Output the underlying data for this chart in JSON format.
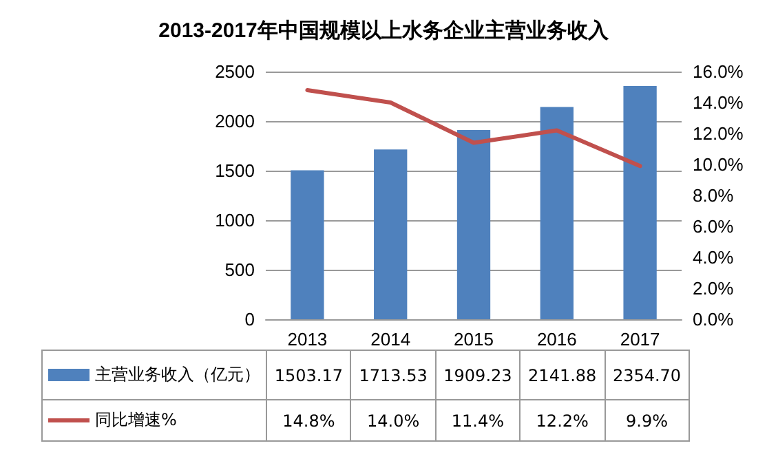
{
  "chart_data": {
    "type": "bar",
    "title": "2013-2017年中国规模以上水务企业主营业务收入",
    "categories": [
      "2013",
      "2014",
      "2015",
      "2016",
      "2017"
    ],
    "series": [
      {
        "name": "主营业务收入（亿元）",
        "color": "#4f81bd",
        "values": [
          1503.17,
          1713.53,
          1909.23,
          2141.88,
          2354.7
        ],
        "value_labels": [
          "1503.17",
          "1713.53",
          "1909.23",
          "2141.88",
          "2354.70"
        ]
      },
      {
        "name": "同比增速%",
        "type": "line",
        "axis": "y2",
        "color": "#c0504d",
        "values": [
          14.8,
          14.0,
          11.4,
          12.2,
          9.9
        ],
        "value_labels": [
          "14.8%",
          "14.0%",
          "11.4%",
          "12.2%",
          "9.9%"
        ]
      }
    ],
    "ylim": [
      0,
      2500
    ],
    "yticks": [
      0,
      500,
      1000,
      1500,
      2000,
      2500
    ],
    "y2lim": [
      0,
      16
    ],
    "y2ticks": [
      {
        "value": 0,
        "label": "0.0%"
      },
      {
        "value": 2,
        "label": "2.0%"
      },
      {
        "value": 4,
        "label": "4.0%"
      },
      {
        "value": 6,
        "label": "6.0%"
      },
      {
        "value": 8,
        "label": "8.0%"
      },
      {
        "value": 10,
        "label": "10.0%"
      },
      {
        "value": 12,
        "label": "12.0%"
      },
      {
        "value": 14,
        "label": "14.0%"
      },
      {
        "value": 16,
        "label": "16.0%"
      }
    ],
    "grid": "y",
    "legend": "bottom",
    "marker": "none",
    "line_style": "solid"
  }
}
